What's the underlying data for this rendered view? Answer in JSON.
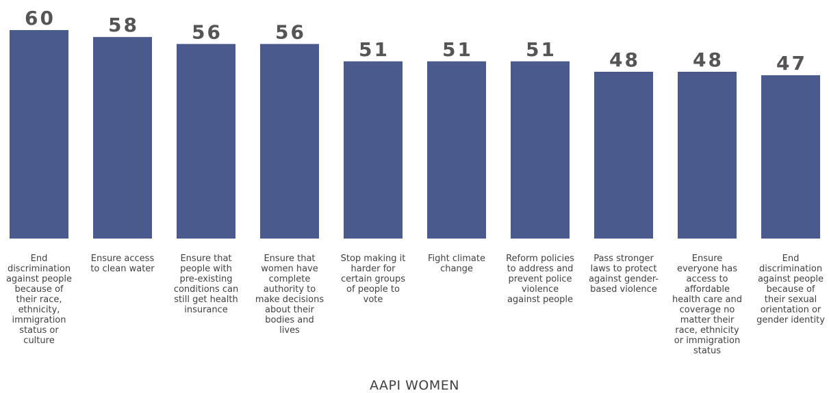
{
  "chart_data": {
    "type": "bar",
    "categories": [
      "End discrimination against people because of their race, ethnicity, immigration status or culture",
      "Ensure access to clean water",
      "Ensure that people with pre-existing conditions can still get health insurance",
      "Ensure that women have complete authority to make decisions about their bodies and lives",
      "Stop making it harder for certain groups of people to vote",
      "Fight climate change",
      "Reform policies to address and prevent police violence against people",
      "Pass stronger laws to protect against gender-based violence",
      "Ensure everyone has access to affordable health care and coverage no matter their race, ethnicity or immigration status",
      "End discrimination against people because of their sexual orientation or gender identity"
    ],
    "values": [
      60,
      58,
      56,
      56,
      51,
      51,
      51,
      48,
      48,
      47
    ],
    "title": "",
    "xlabel": "AAPI WOMEN",
    "ylabel": "",
    "ylim": [
      0,
      60
    ],
    "grid": false,
    "legend": "none",
    "bar_color": "#4A5A8C",
    "value_label_color": "#555555"
  }
}
